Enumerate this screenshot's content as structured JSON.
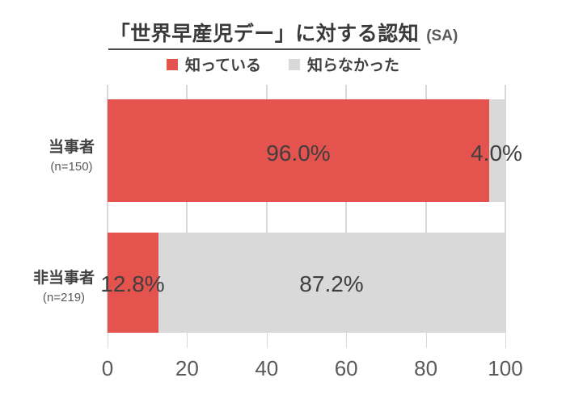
{
  "title": {
    "main": "「世界早産児デー」に対する認知",
    "suffix": "(SA)"
  },
  "legend": {
    "items": [
      {
        "label": "知っている",
        "color": "#e4534e"
      },
      {
        "label": "知らなかった",
        "color": "#d9d9d9"
      }
    ]
  },
  "chart_data": {
    "type": "bar",
    "orientation": "horizontal",
    "stacked": true,
    "title": "「世界早産児デー」に対する認知 (SA)",
    "categories": [
      "当事者",
      "非当事者"
    ],
    "category_sublabels": [
      "(n=150)",
      "(n=219)"
    ],
    "series": [
      {
        "name": "知っている",
        "color": "#e4534e",
        "values": [
          96.0,
          12.8
        ]
      },
      {
        "name": "知らなかった",
        "color": "#d9d9d9",
        "values": [
          4.0,
          87.2
        ]
      }
    ],
    "data_labels": {
      "row1_known": "96.0%",
      "row1_unknown": "4.0%",
      "row2_known": "12.8%",
      "row2_unknown": "87.2%"
    },
    "xlim": [
      0,
      100
    ],
    "x_ticks": [
      "0",
      "20",
      "40",
      "60",
      "80",
      "100"
    ],
    "grid": true,
    "legend_position": "top",
    "colors": {
      "known": "#e4534e",
      "unknown": "#d9d9d9",
      "gridline": "#d9d9d9",
      "label_text": "#3f3f3f",
      "axis_text": "#595959"
    }
  }
}
